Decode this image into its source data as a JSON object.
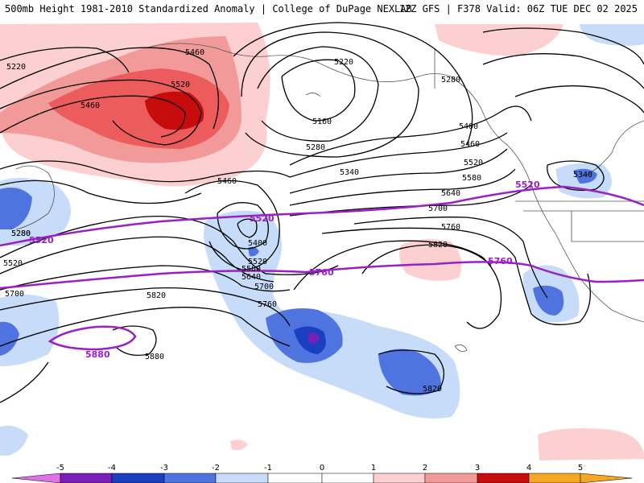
{
  "header": {
    "title": "500mb Height 1981-2010 Standardized Anomaly | College of DuPage NEXLAB",
    "valid": "12Z GFS | F378 Valid: 06Z TUE DEC 02 2025"
  },
  "colors": {
    "neg5": "#e070e6",
    "neg4": "#7a1fb8",
    "neg3": "#1a3fc0",
    "neg2": "#4f74e0",
    "neg1": "#c6dcf9",
    "pos1": "#fcd0d0",
    "pos2": "#f29a9a",
    "pos3": "#ec5c5c",
    "pos4": "#c70c0c",
    "pos5": "#f5a623",
    "contour": "#000000",
    "purple": "#9b1fc6",
    "coast": "#555555"
  },
  "contours": {
    "black": [
      "5220",
      "5460",
      "5520",
      "5460",
      "5220",
      "5160",
      "5280",
      "5280",
      "5340",
      "5400",
      "5460",
      "5520",
      "5580",
      "5640",
      "5700",
      "5760",
      "5820",
      "5340",
      "5460",
      "5280",
      "5400",
      "5520",
      "5580",
      "5640",
      "5700",
      "5760",
      "5820",
      "5520",
      "5280",
      "5700",
      "5880",
      "5820"
    ],
    "purple": [
      "5520",
      "5520",
      "5520",
      "5760",
      "5760",
      "5880"
    ]
  },
  "colorbar": {
    "ticks": [
      "-5",
      "-4",
      "-3",
      "-2",
      "-1",
      "0",
      "1",
      "2",
      "3",
      "4",
      "5"
    ]
  }
}
